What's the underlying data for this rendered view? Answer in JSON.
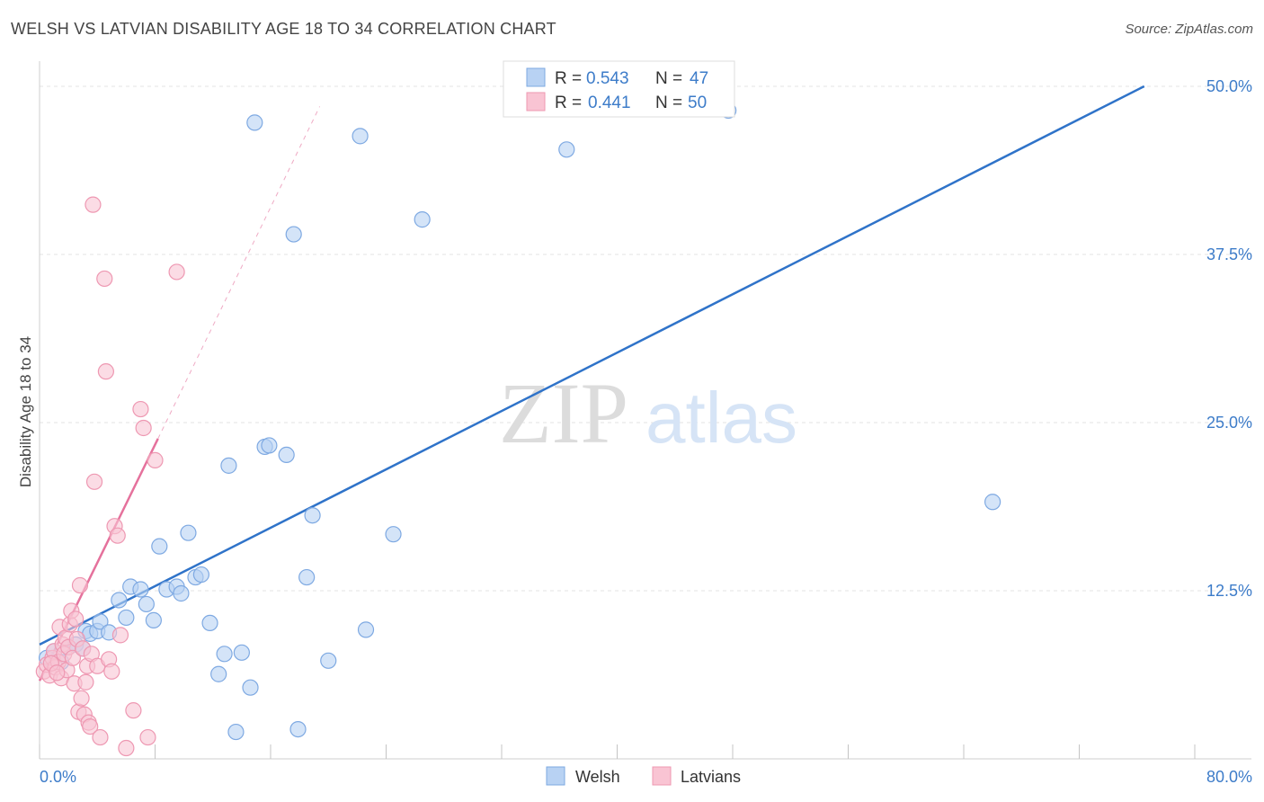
{
  "title": "WELSH VS LATVIAN DISABILITY AGE 18 TO 34 CORRELATION CHART",
  "source": "Source: ZipAtlas.com",
  "watermark": {
    "zip": "ZIP",
    "atlas": "atlas"
  },
  "colors": {
    "welsh_fill": "#b8d2f3",
    "welsh_stroke": "#7ea9e2",
    "welsh_line": "#2f73c9",
    "latvian_fill": "#f9c4d3",
    "latvian_stroke": "#ee98b2",
    "latvian_line": "#e5719c",
    "axis_text": "#3d7cc9"
  },
  "chart_data": {
    "type": "scatter",
    "xlabel": "",
    "ylabel": "Disability Age 18 to 34",
    "xlim": [
      0,
      80
    ],
    "ylim": [
      0,
      52
    ],
    "x_tick_labels": [
      "0.0%",
      "80.0%"
    ],
    "y_ticks": [
      12.5,
      25.0,
      37.5,
      50.0
    ],
    "y_tick_labels": [
      "12.5%",
      "25.0%",
      "37.5%",
      "50.0%"
    ],
    "grid": true,
    "legend_top": [
      {
        "r_label": "R = ",
        "r_value": "0.543",
        "n_label": "N = ",
        "n_value": "47"
      },
      {
        "r_label": "R = ",
        "r_value": "0.441",
        "n_label": "N = ",
        "n_value": "50"
      }
    ],
    "legend_bottom": [
      "Welsh",
      "Latvians"
    ],
    "series": [
      {
        "name": "Welsh",
        "points": [
          [
            0.5,
            7.5
          ],
          [
            1.0,
            8.0
          ],
          [
            1.5,
            7.2
          ],
          [
            2.0,
            8.3
          ],
          [
            2.5,
            8.5
          ],
          [
            3.0,
            8.2
          ],
          [
            3.2,
            9.5
          ],
          [
            3.5,
            9.3
          ],
          [
            4.0,
            9.5
          ],
          [
            4.2,
            10.2
          ],
          [
            4.8,
            9.4
          ],
          [
            5.5,
            11.8
          ],
          [
            6.0,
            10.5
          ],
          [
            6.3,
            12.8
          ],
          [
            7.0,
            12.6
          ],
          [
            7.4,
            11.5
          ],
          [
            7.9,
            10.3
          ],
          [
            8.3,
            15.8
          ],
          [
            8.8,
            12.6
          ],
          [
            9.5,
            12.8
          ],
          [
            9.8,
            12.3
          ],
          [
            10.3,
            16.8
          ],
          [
            10.8,
            13.5
          ],
          [
            11.2,
            13.7
          ],
          [
            11.8,
            10.1
          ],
          [
            12.4,
            6.3
          ],
          [
            12.8,
            7.8
          ],
          [
            13.1,
            21.8
          ],
          [
            13.6,
            2.0
          ],
          [
            14.0,
            7.9
          ],
          [
            14.6,
            5.3
          ],
          [
            14.9,
            47.3
          ],
          [
            15.6,
            23.2
          ],
          [
            15.9,
            23.3
          ],
          [
            17.1,
            22.6
          ],
          [
            17.6,
            39.0
          ],
          [
            17.9,
            2.2
          ],
          [
            18.5,
            13.5
          ],
          [
            18.9,
            18.1
          ],
          [
            20.0,
            7.3
          ],
          [
            22.2,
            46.3
          ],
          [
            22.6,
            9.6
          ],
          [
            24.5,
            16.7
          ],
          [
            26.5,
            40.1
          ],
          [
            36.5,
            45.3
          ],
          [
            47.7,
            48.2
          ],
          [
            66.0,
            19.1
          ]
        ]
      },
      {
        "name": "Latvians",
        "points": [
          [
            0.3,
            6.5
          ],
          [
            0.5,
            7.0
          ],
          [
            0.7,
            6.2
          ],
          [
            0.9,
            7.5
          ],
          [
            1.0,
            8.0
          ],
          [
            1.1,
            6.8
          ],
          [
            1.3,
            7.2
          ],
          [
            1.4,
            9.8
          ],
          [
            1.5,
            6.0
          ],
          [
            1.6,
            8.5
          ],
          [
            1.7,
            7.8
          ],
          [
            1.8,
            9.0
          ],
          [
            1.9,
            6.6
          ],
          [
            2.0,
            8.3
          ],
          [
            2.1,
            10.0
          ],
          [
            2.2,
            11.0
          ],
          [
            2.3,
            7.5
          ],
          [
            2.4,
            5.6
          ],
          [
            2.5,
            10.4
          ],
          [
            2.6,
            8.9
          ],
          [
            2.7,
            3.5
          ],
          [
            2.8,
            12.9
          ],
          [
            2.9,
            4.5
          ],
          [
            3.0,
            8.2
          ],
          [
            3.1,
            3.3
          ],
          [
            3.2,
            5.7
          ],
          [
            3.3,
            6.9
          ],
          [
            3.4,
            2.7
          ],
          [
            3.5,
            2.4
          ],
          [
            3.6,
            7.8
          ],
          [
            3.7,
            41.2
          ],
          [
            3.8,
            20.6
          ],
          [
            4.0,
            6.9
          ],
          [
            4.2,
            1.6
          ],
          [
            4.5,
            35.7
          ],
          [
            4.6,
            28.8
          ],
          [
            4.8,
            7.4
          ],
          [
            5.0,
            6.5
          ],
          [
            5.2,
            17.3
          ],
          [
            5.4,
            16.6
          ],
          [
            5.6,
            9.2
          ],
          [
            6.0,
            0.8
          ],
          [
            6.5,
            3.6
          ],
          [
            7.0,
            26.0
          ],
          [
            7.2,
            24.6
          ],
          [
            7.5,
            1.6
          ],
          [
            8.0,
            22.2
          ],
          [
            9.5,
            36.2
          ],
          [
            0.8,
            7.1
          ],
          [
            1.2,
            6.4
          ]
        ]
      }
    ],
    "trend_lines": [
      {
        "series": "Welsh",
        "from": [
          0,
          8.5
        ],
        "to": [
          76.5,
          50.0
        ],
        "dashed": false
      },
      {
        "series": "Latvians",
        "from": [
          0,
          5.8
        ],
        "to": [
          8.2,
          23.8
        ],
        "dashed": false
      },
      {
        "series": "Latvians",
        "from": [
          8.2,
          23.8
        ],
        "to": [
          19.4,
          48.5
        ],
        "dashed": true
      }
    ]
  }
}
